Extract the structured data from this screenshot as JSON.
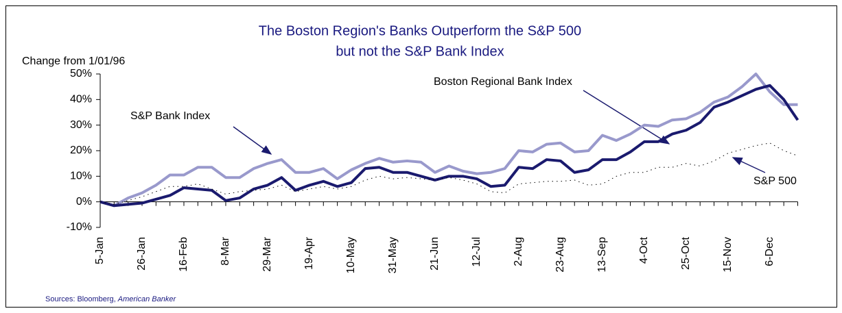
{
  "chart_data": {
    "type": "line",
    "title": [
      "The Boston Region's Banks Outperform the S&P 500",
      "but not the S&P Bank Index"
    ],
    "y_label": "Change from 1/01/96",
    "source": {
      "text": "Sources:  Bloomberg, ",
      "italic": "American Banker"
    },
    "categories": [
      "5-Jan",
      null,
      null,
      "26-Jan",
      null,
      null,
      "16-Feb",
      null,
      null,
      "8-Mar",
      null,
      null,
      "29-Mar",
      null,
      null,
      "19-Apr",
      null,
      null,
      "10-May",
      null,
      null,
      "31-May",
      null,
      null,
      "21-Jun",
      null,
      null,
      "12-Jul",
      null,
      null,
      "2-Aug",
      null,
      null,
      "23-Aug",
      null,
      null,
      "13-Sep",
      null,
      null,
      "4-Oct",
      null,
      null,
      "25-Oct",
      null,
      null,
      "15-Nov",
      null,
      null,
      "6-Dec",
      null,
      null
    ],
    "ylim": [
      -10,
      50
    ],
    "yticks": [
      {
        "value": -10,
        "label": "-10%"
      },
      {
        "value": 0,
        "label": "0%"
      },
      {
        "value": 10,
        "label": "10%"
      },
      {
        "value": 20,
        "label": "20%"
      },
      {
        "value": 30,
        "label": "30%"
      },
      {
        "value": 40,
        "label": "40%"
      },
      {
        "value": 50,
        "label": "50%"
      }
    ],
    "series": [
      {
        "name": "S&P Bank Index",
        "color": "#9999cc",
        "values": [
          0,
          -1.5,
          1.5,
          3.5,
          6.5,
          10.5,
          10.5,
          13.5,
          13.5,
          9.5,
          9.5,
          13,
          15,
          16.5,
          11.5,
          11.5,
          13,
          9,
          12.5,
          15,
          17,
          15.5,
          16,
          15.5,
          11.5,
          14,
          12,
          11,
          11.5,
          13,
          20,
          19.5,
          22.5,
          23,
          19.5,
          20,
          26,
          24,
          26.5,
          30,
          29.5,
          32,
          32.5,
          35,
          39,
          41,
          45,
          50,
          43,
          38,
          38
        ]
      },
      {
        "name": "Boston Regional Bank Index",
        "color": "#1a1a6e",
        "values": [
          0,
          -1.5,
          -1,
          -0.5,
          1,
          2.5,
          5.5,
          5,
          4.5,
          0.5,
          1.5,
          5,
          6.5,
          9.5,
          4.5,
          6.5,
          8,
          6,
          7.5,
          13,
          13.5,
          11.5,
          11.5,
          10,
          8.5,
          10,
          10,
          9,
          6,
          6.5,
          13.5,
          13,
          16.5,
          16,
          11.5,
          12.5,
          16.5,
          16.5,
          19.5,
          23.5,
          23.5,
          26.5,
          28,
          31,
          37,
          39,
          41.5,
          44,
          45.5,
          40,
          32
        ]
      },
      {
        "name": "S&P 500",
        "color": "#000000",
        "values": [
          0,
          -1,
          0.5,
          2,
          4,
          6,
          6,
          7,
          5,
          3,
          4,
          4.5,
          5,
          6.5,
          4,
          5,
          6,
          5,
          6,
          8.5,
          10,
          9,
          9.5,
          9,
          8.5,
          9.5,
          8.5,
          7,
          4,
          3.5,
          7,
          7.5,
          8,
          8,
          8.5,
          6.5,
          7,
          10,
          11.5,
          11.5,
          13.5,
          13.5,
          15,
          14,
          16,
          19,
          20.5,
          22,
          23,
          20,
          18
        ]
      }
    ]
  }
}
